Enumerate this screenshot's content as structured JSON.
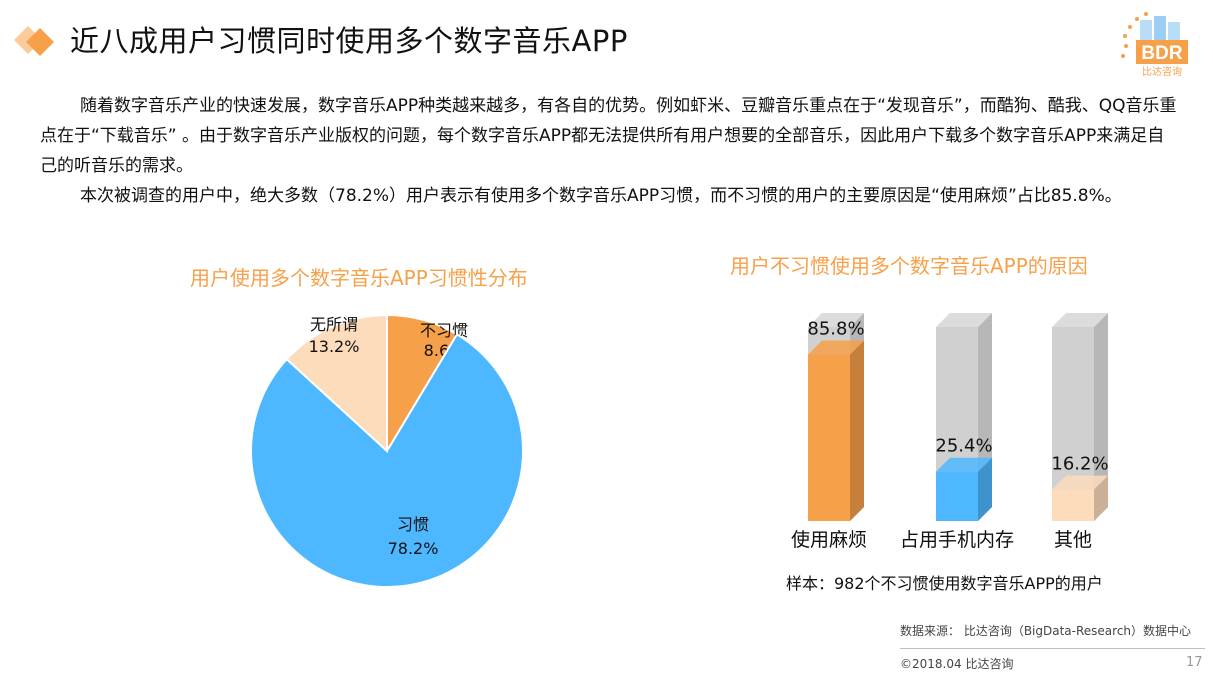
{
  "header": {
    "title": "近八成用户习惯同时使用多个数字音乐APP",
    "logo_text": "BDR",
    "logo_sub": "比达咨询"
  },
  "intro": {
    "p1": "随着数字音乐产业的快速发展，数字音乐APP种类越来越多，有各自的优势。例如虾米、豆瓣音乐重点在于“发现音乐”，而酷狗、酷我、QQ音乐重点在于“下载音乐” 。由于数字音乐产业版权的问题，每个数字音乐APP都无法提供所有用户想要的全部音乐，因此用户下载多个数字音乐APP来满足自己的听音乐的需求。",
    "p2": "本次被调查的用户中，绝大多数（78.2%）用户表示有使用多个数字音乐APP习惯，而不习惯的用户的主要原因是“使用麻烦”占比85.8%。"
  },
  "chart_data": [
    {
      "type": "pie",
      "title": "用户使用多个数字音乐APP习惯性分布",
      "slices": [
        {
          "label": "不习惯",
          "value": 8.6,
          "display": "8.6%",
          "color": "#f7a04a"
        },
        {
          "label": "习惯",
          "value": 78.2,
          "display": "78.2%",
          "color": "#4db8ff"
        },
        {
          "label": "无所谓",
          "value": 13.2,
          "display": "13.2%",
          "color": "#fddcbc"
        }
      ]
    },
    {
      "type": "bar",
      "title": "用户不习惯使用多个数字音乐APP的原因",
      "categories": [
        "使用麻烦",
        "占用手机内存",
        "其他"
      ],
      "values": [
        85.8,
        25.4,
        16.2
      ],
      "display": [
        "85.8%",
        "25.4%",
        "16.2%"
      ],
      "colors": [
        "#f7a04a",
        "#4db8ff",
        "#fddcbc"
      ],
      "background_color": "#d0d0d0",
      "ylim": [
        0,
        100
      ]
    }
  ],
  "footer": {
    "sample_note": "样本：982个不习惯使用数字音乐APP的用户",
    "source": "数据来源： 比达咨询（BigData-Research）数据中心",
    "copyright": "©2018.04 比达咨询",
    "page_number": "17"
  }
}
